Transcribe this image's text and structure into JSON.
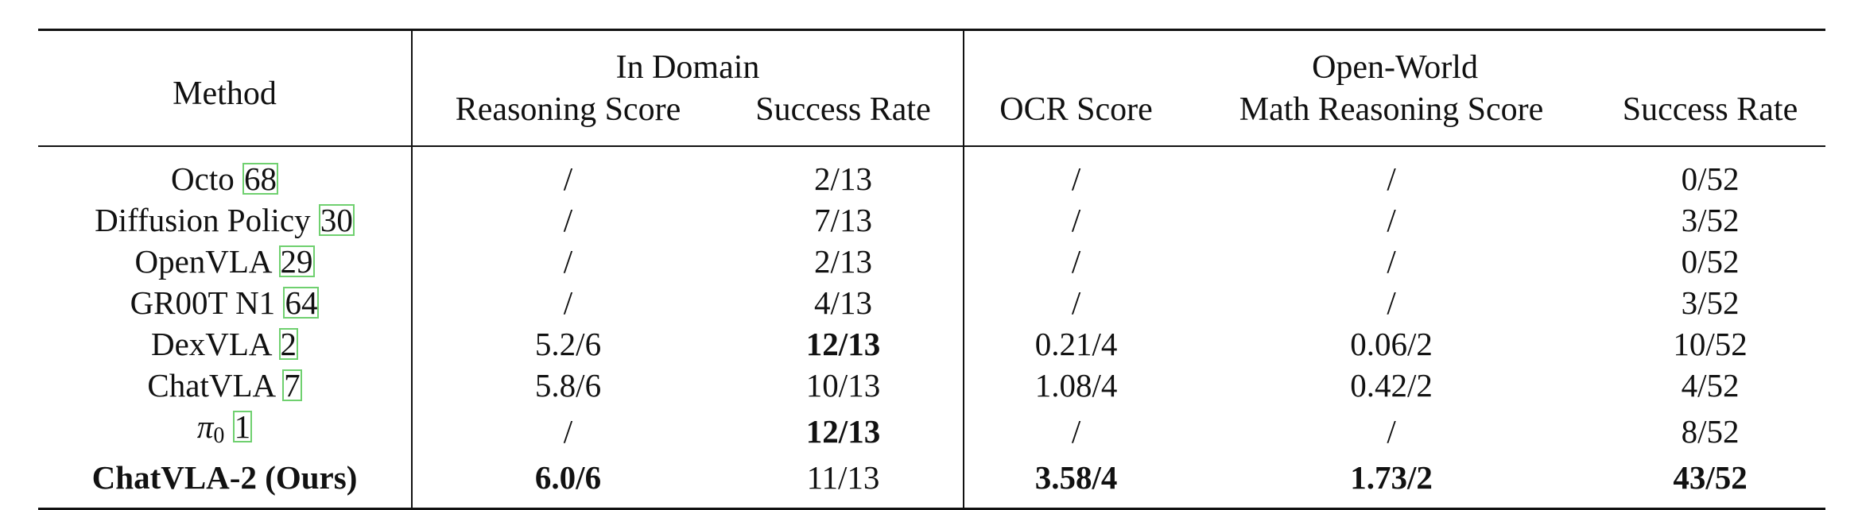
{
  "table": {
    "header": {
      "method": "Method",
      "in_domain": "In Domain",
      "open_world": "Open-World",
      "reasoning_score": "Reasoning Score",
      "success_rate_in": "Success Rate",
      "ocr_score": "OCR Score",
      "math_reasoning_score": "Math Reasoning Score",
      "success_rate_open": "Success Rate"
    },
    "rows": [
      {
        "method": "Octo",
        "cite": "68",
        "reasoning": "/",
        "success_in": "2/13",
        "ocr": "/",
        "math": "/",
        "success_open": "0/52"
      },
      {
        "method": "Diffusion Policy",
        "cite": "30",
        "reasoning": "/",
        "success_in": "7/13",
        "ocr": "/",
        "math": "/",
        "success_open": "3/52"
      },
      {
        "method": "OpenVLA",
        "cite": "29",
        "reasoning": "/",
        "success_in": "2/13",
        "ocr": "/",
        "math": "/",
        "success_open": "0/52"
      },
      {
        "method": "GR00T N1",
        "cite": "64",
        "reasoning": "/",
        "success_in": "4/13",
        "ocr": "/",
        "math": "/",
        "success_open": "3/52"
      },
      {
        "method": "DexVLA",
        "cite": "2",
        "reasoning": "5.2/6",
        "success_in": "12/13",
        "ocr": "0.21/4",
        "math": "0.06/2",
        "success_open": "10/52"
      },
      {
        "method": "ChatVLA",
        "cite": "7",
        "reasoning": "5.8/6",
        "success_in": "10/13",
        "ocr": "1.08/4",
        "math": "0.42/2",
        "success_open": "4/52"
      },
      {
        "method_symbol": "π",
        "method_sub": "0",
        "cite": "1",
        "reasoning": "/",
        "success_in": "12/13",
        "ocr": "/",
        "math": "/",
        "success_open": "8/52"
      },
      {
        "method": "ChatVLA-2 (Ours)",
        "reasoning": "6.0/6",
        "success_in": "11/13",
        "ocr": "3.58/4",
        "math": "1.73/2",
        "success_open": "43/52"
      }
    ]
  }
}
